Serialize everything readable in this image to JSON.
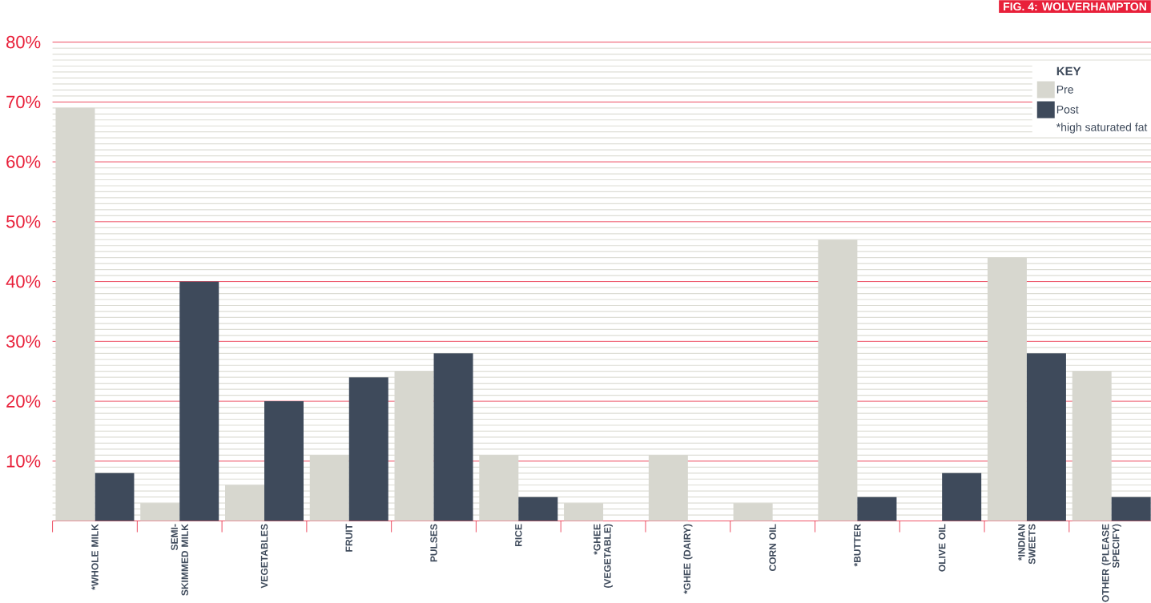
{
  "chart_data": {
    "type": "bar",
    "title": "FIG. 4: WOLVERHAMPTON",
    "legend_title": "KEY",
    "categories": [
      "*WHOLE MILK",
      "SEMI-SKIMMED MILK",
      "VEGETABLES",
      "FRUIT",
      "PULSES",
      "RICE",
      "*GHEE (VEGETABLE)",
      "*GHEE (DAIRY)",
      "CORN OIL",
      "*BUTTER",
      "OLIVE OIL",
      "*INDIAN SWEETS",
      "OTHER (PLEASE SPECIFY)"
    ],
    "series": [
      {
        "name": "Pre",
        "color": "#d7d7cf",
        "values": [
          69,
          3,
          6,
          11,
          25,
          11,
          3,
          11,
          3,
          47,
          0,
          44,
          25
        ]
      },
      {
        "name": "Post",
        "color": "#3e4a5b",
        "values": [
          8,
          40,
          20,
          24,
          28,
          4,
          0,
          0,
          0,
          4,
          8,
          28,
          4
        ]
      }
    ],
    "ylim": [
      0,
      80
    ],
    "yticks": [
      {
        "value": 0,
        "label": null
      },
      {
        "value": 10,
        "label": "10%"
      },
      {
        "value": 20,
        "label": "20%"
      },
      {
        "value": 30,
        "label": "30%"
      },
      {
        "value": 40,
        "label": "40%"
      },
      {
        "value": 50,
        "label": "50%"
      },
      {
        "value": 60,
        "label": "60%"
      },
      {
        "value": 70,
        "label": "70%"
      },
      {
        "value": 80,
        "label": "80%"
      }
    ],
    "grid": "y",
    "legend": "top right",
    "annotations": [
      "*high saturated fat"
    ]
  }
}
